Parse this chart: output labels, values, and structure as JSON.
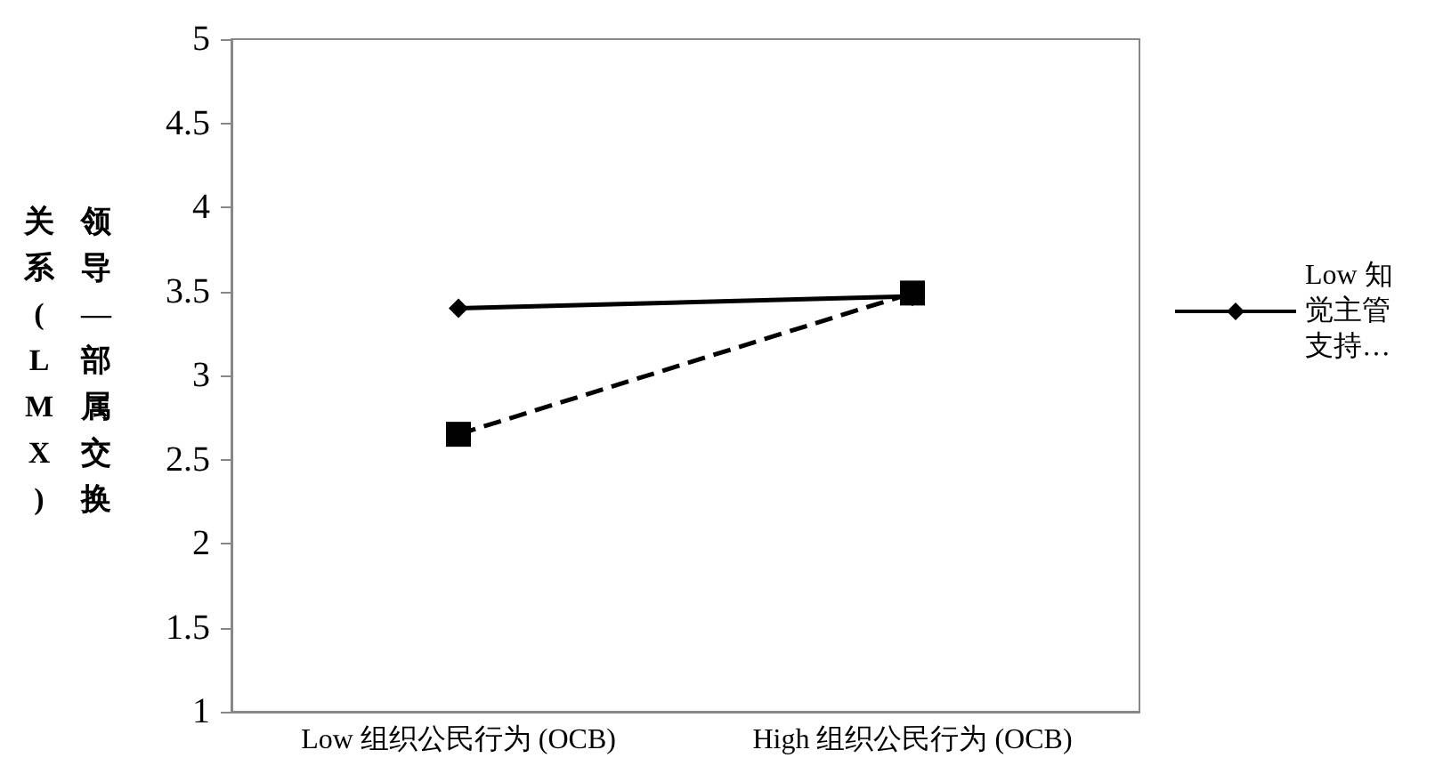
{
  "chart_data": {
    "type": "line",
    "ylabel": "领导—部属交换关系(LMX)",
    "categories": [
      "Low 组织公民行为 (OCB)",
      "High 组织公民行为 (OCB)"
    ],
    "series": [
      {
        "name": "Low 知觉主管支持…",
        "color": "#000000",
        "values": [
          3.4,
          3.47
        ],
        "marker": "diamond",
        "line_style": "solid"
      },
      {
        "color": "#000000",
        "values": [
          2.65,
          3.49
        ],
        "marker": "square",
        "line_style": "dashed"
      }
    ],
    "ylim": [
      1,
      5
    ],
    "yticks": [
      1,
      1.5,
      2,
      2.5,
      3,
      3.5,
      4,
      4.5,
      5
    ],
    "grid": false,
    "legend": "right"
  }
}
